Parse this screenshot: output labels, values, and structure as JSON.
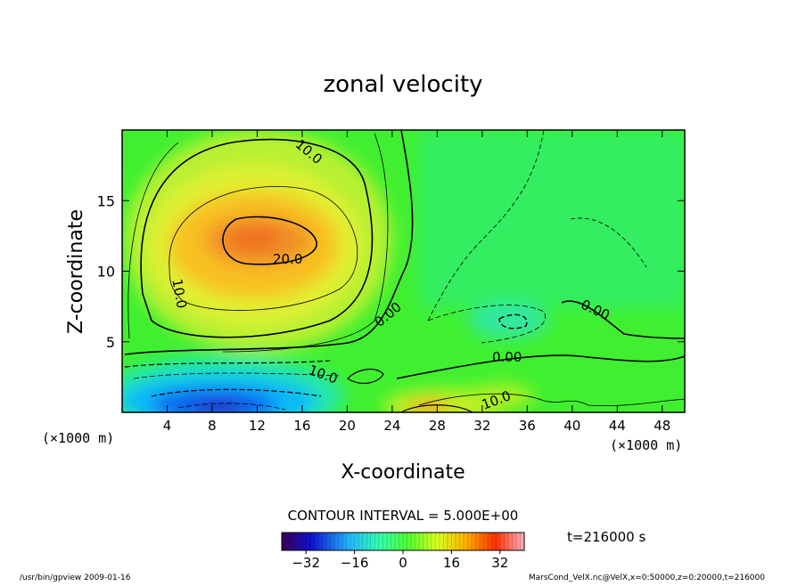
{
  "chart_data": {
    "type": "heatmap",
    "title": "zonal velocity",
    "xlabel": "X-coordinate",
    "ylabel": "Z-coordinate",
    "x_unit": "(×1000 m)",
    "y_unit": "(×1000 m)",
    "xlim": [
      0,
      50
    ],
    "ylim": [
      0,
      20
    ],
    "x_ticks": [
      4,
      8,
      12,
      16,
      20,
      24,
      28,
      32,
      36,
      40,
      44,
      48
    ],
    "y_ticks": [
      5,
      10,
      15
    ],
    "contour_interval_text": "CONTOUR INTERVAL = 5.000E+00",
    "contour_labels": [
      "10.0",
      "20.0",
      "10.0",
      "0.00",
      "0.00",
      "10.0",
      "0.00",
      "10.0"
    ],
    "colorbar": {
      "min": -40,
      "max": 40,
      "ticks": [
        -32,
        -16,
        0,
        16,
        32
      ]
    },
    "time_label": "t=216000 s",
    "features": [
      {
        "kind": "max",
        "x": 12,
        "z": 12,
        "value": 24
      },
      {
        "kind": "min",
        "x": 10,
        "z": 0.5,
        "value": -30
      },
      {
        "kind": "max",
        "x": 28,
        "z": 0.3,
        "value": 22
      }
    ]
  },
  "footer": {
    "left": "/usr/bin/gpview   2009-01-16",
    "right": "MarsCond_VelX.nc@VelX,x=0:50000,z=0:20000,t=216000"
  }
}
